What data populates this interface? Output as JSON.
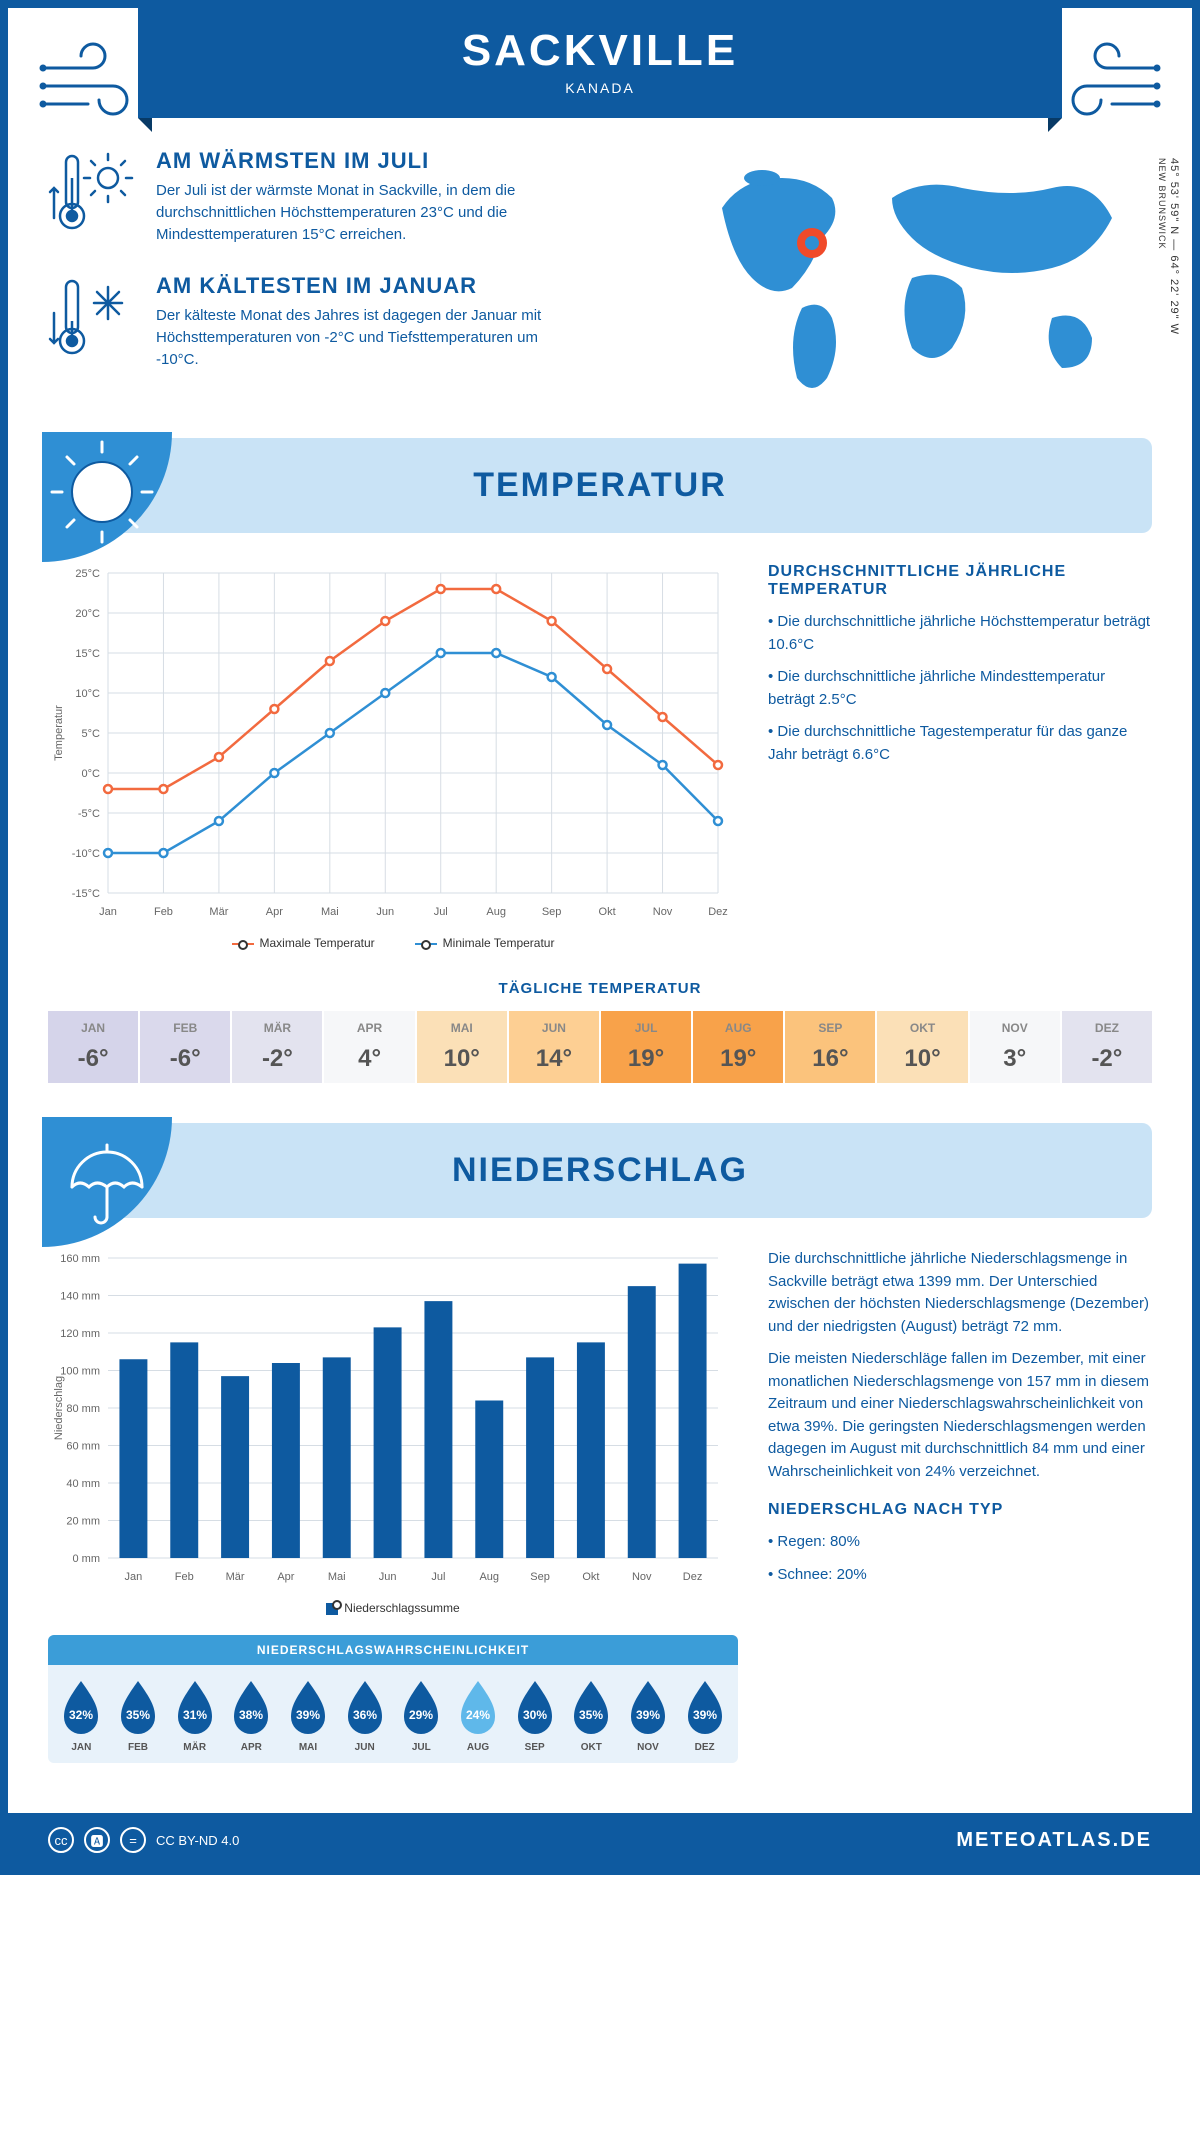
{
  "header": {
    "city": "SACKVILLE",
    "country": "KANADA"
  },
  "coords": {
    "lat": "45° 53' 59\" N",
    "lon": "64° 22' 29\" W",
    "region": "NEW BRUNSWICK"
  },
  "warmest": {
    "title": "AM WÄRMSTEN IM JULI",
    "text": "Der Juli ist der wärmste Monat in Sackville, in dem die durchschnittlichen Höchsttemperaturen 23°C und die Mindesttemperaturen 15°C erreichen."
  },
  "coldest": {
    "title": "AM KÄLTESTEN IM JANUAR",
    "text": "Der kälteste Monat des Jahres ist dagegen der Januar mit Höchsttemperaturen von -2°C und Tiefsttemperaturen um -10°C."
  },
  "temp_section": {
    "title": "TEMPERATUR",
    "info_title": "DURCHSCHNITTLICHE JÄHRLICHE TEMPERATUR",
    "bullets": [
      "Die durchschnittliche jährliche Höchsttemperatur beträgt 10.6°C",
      "Die durchschnittliche jährliche Mindesttemperatur beträgt 2.5°C",
      "Die durchschnittliche Tagestemperatur für das ganze Jahr beträgt 6.6°C"
    ],
    "chart": {
      "type": "line",
      "months": [
        "Jan",
        "Feb",
        "Mär",
        "Apr",
        "Mai",
        "Jun",
        "Jul",
        "Aug",
        "Sep",
        "Okt",
        "Nov",
        "Dez"
      ],
      "max": [
        -2,
        -2,
        2,
        8,
        14,
        19,
        23,
        23,
        19,
        13,
        7,
        1
      ],
      "min": [
        -10,
        -10,
        -6,
        0,
        5,
        10,
        15,
        15,
        12,
        6,
        1,
        -6
      ],
      "ylim": [
        -15,
        25
      ],
      "ystep": 5,
      "ylabel": "Temperatur",
      "max_color": "#f26a3f",
      "min_color": "#2f8fd4",
      "grid_color": "#d6dde4",
      "background": "#ffffff",
      "legend_max": "Maximale Temperatur",
      "legend_min": "Minimale Temperatur"
    },
    "daily_title": "TÄGLICHE TEMPERATUR",
    "daily": {
      "months": [
        "JAN",
        "FEB",
        "MÄR",
        "APR",
        "MAI",
        "JUN",
        "JUL",
        "AUG",
        "SEP",
        "OKT",
        "NOV",
        "DEZ"
      ],
      "values": [
        "-6°",
        "-6°",
        "-2°",
        "4°",
        "10°",
        "14°",
        "19°",
        "19°",
        "16°",
        "10°",
        "3°",
        "-2°"
      ],
      "colors": [
        "#d5d4ea",
        "#dad9ec",
        "#e3e3ef",
        "#f6f7f9",
        "#fbe0b7",
        "#fdcf93",
        "#f8a24a",
        "#f8a24a",
        "#fbc37c",
        "#fbe0b7",
        "#f6f7f9",
        "#e3e3ef"
      ]
    }
  },
  "precip_section": {
    "title": "NIEDERSCHLAG",
    "text1": "Die durchschnittliche jährliche Niederschlagsmenge in Sackville beträgt etwa 1399 mm. Der Unterschied zwischen der höchsten Niederschlagsmenge (Dezember) und der niedrigsten (August) beträgt 72 mm.",
    "text2": "Die meisten Niederschläge fallen im Dezember, mit einer monatlichen Niederschlagsmenge von 157 mm in diesem Zeitraum und einer Niederschlagswahrscheinlichkeit von etwa 39%. Die geringsten Niederschlagsmengen werden dagegen im August mit durchschnittlich 84 mm und einer Wahrscheinlichkeit von 24% verzeichnet.",
    "by_type_title": "NIEDERSCHLAG NACH TYP",
    "by_type": [
      "Regen: 80%",
      "Schnee: 20%"
    ],
    "chart": {
      "type": "bar",
      "months": [
        "Jan",
        "Feb",
        "Mär",
        "Apr",
        "Mai",
        "Jun",
        "Jul",
        "Aug",
        "Sep",
        "Okt",
        "Nov",
        "Dez"
      ],
      "values": [
        106,
        115,
        97,
        104,
        107,
        123,
        137,
        84,
        107,
        115,
        145,
        157
      ],
      "ylim": [
        0,
        160
      ],
      "ystep": 20,
      "ylabel": "Niederschlag",
      "bar_color": "#0e5aa0",
      "grid_color": "#d6dde4",
      "legend": "Niederschlagssumme"
    },
    "prob": {
      "title": "NIEDERSCHLAGSWAHRSCHEINLICHKEIT",
      "months": [
        "JAN",
        "FEB",
        "MÄR",
        "APR",
        "MAI",
        "JUN",
        "JUL",
        "AUG",
        "SEP",
        "OKT",
        "NOV",
        "DEZ"
      ],
      "values": [
        "32%",
        "35%",
        "31%",
        "38%",
        "39%",
        "36%",
        "29%",
        "24%",
        "30%",
        "35%",
        "39%",
        "39%"
      ],
      "min_index": 7,
      "drop_color": "#0e5aa0",
      "drop_min_color": "#5fb8ea"
    }
  },
  "footer": {
    "license": "CC BY-ND 4.0",
    "brand": "METEOATLAS.DE"
  }
}
